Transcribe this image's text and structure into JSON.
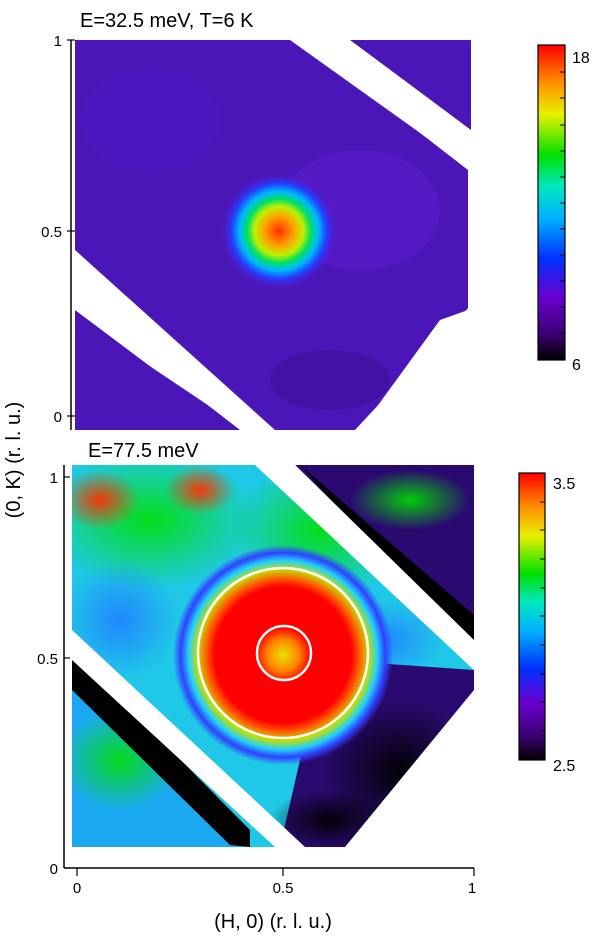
{
  "figure": {
    "xlabel": "(H, 0) (r. l. u.)",
    "ylabel": "(0, K) (r. l. u.)"
  },
  "chart_data": [
    {
      "type": "heatmap",
      "title": "E=32.5 meV, T=6 K",
      "xlabel": "(H, 0) (r. l. u.)",
      "ylabel": "(0, K) (r. l. u.)",
      "xlim": [
        0,
        1
      ],
      "ylim": [
        0,
        1
      ],
      "y_ticks": [
        0,
        0.5,
        1
      ],
      "y_tick_labels": [
        "0",
        "0.5",
        "1"
      ],
      "colorbar": {
        "min": 6,
        "max": 18,
        "min_label": "6",
        "max_label": "18",
        "colormap": "rainbow"
      },
      "features": [
        {
          "type": "peak",
          "center": [
            0.5,
            0.5
          ],
          "peak_value": 18,
          "width_rlu": 0.06
        }
      ],
      "background_value": 7.5,
      "grid": false
    },
    {
      "type": "heatmap",
      "title": "E=77.5 meV",
      "xlabel": "(H, 0) (r. l. u.)",
      "ylabel": "(0, K) (r. l. u.)",
      "xlim": [
        0,
        1
      ],
      "ylim": [
        0,
        1
      ],
      "x_ticks": [
        0,
        0.5,
        1
      ],
      "x_tick_labels": [
        "0",
        "0.5",
        "1"
      ],
      "y_ticks": [
        0,
        0.5,
        1
      ],
      "y_tick_labels": [
        "0",
        "0.5",
        "1"
      ],
      "colorbar": {
        "min": 2.5,
        "max": 3.5,
        "min_label": "2.5",
        "max_label": "3.5",
        "colormap": "rainbow"
      },
      "features": [
        {
          "type": "ring",
          "center": [
            0.5,
            0.5
          ],
          "inner_radius_rlu": 0.06,
          "outer_radius_rlu": 0.23,
          "value": 3.5
        }
      ],
      "annotations": [
        {
          "type": "circle",
          "center": [
            0.5,
            0.5
          ],
          "radius_rlu": 0.07,
          "color": "#ffffff"
        },
        {
          "type": "circle",
          "center": [
            0.5,
            0.5
          ],
          "radius_rlu": 0.22,
          "color": "#ffffff"
        }
      ],
      "background_value": 2.95,
      "grid": false
    }
  ]
}
